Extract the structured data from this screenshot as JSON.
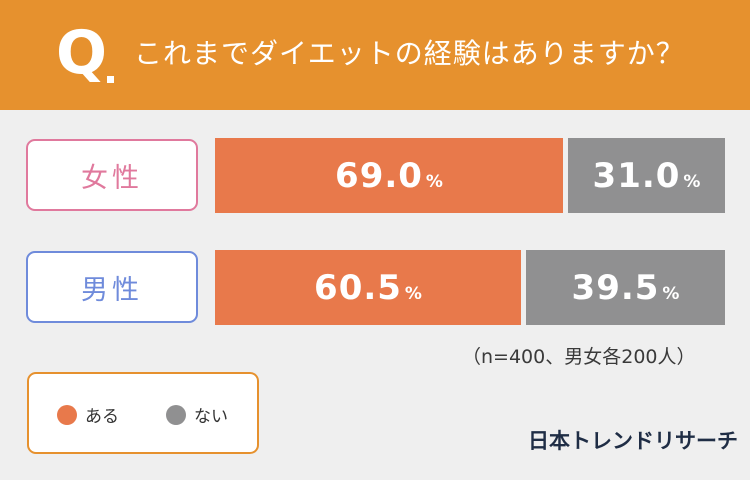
{
  "header": {
    "q_letter": "Q",
    "question": "これまでダイエットの経験はありますか？"
  },
  "colors": {
    "header_bg": "#e6912e",
    "yes": "#e8794b",
    "no": "#909091",
    "female_label": "#e0799d",
    "male_label": "#6f8bdb"
  },
  "chart_data": {
    "type": "bar",
    "orientation": "horizontal",
    "stacked": true,
    "percent": true,
    "title": "これまでダイエットの経験はありますか？",
    "categories": [
      "女性",
      "男性"
    ],
    "series": [
      {
        "name": "ある",
        "values": [
          69.0,
          60.5
        ]
      },
      {
        "name": "ない",
        "values": [
          31.0,
          39.5
        ]
      }
    ],
    "unit": "%",
    "xlim": [
      0,
      100
    ],
    "grid": false,
    "legend_position": "bottom-left"
  },
  "rows": [
    {
      "label": "女性",
      "yes_text": "69.0",
      "no_text": "31.0"
    },
    {
      "label": "男性",
      "yes_text": "60.5",
      "no_text": "39.5"
    }
  ],
  "percent_sign": "%",
  "legend": {
    "yes_label": "ある",
    "no_label": "ない"
  },
  "note": "（n=400、男女各200人）",
  "brand": "日本トレンドリサーチ"
}
